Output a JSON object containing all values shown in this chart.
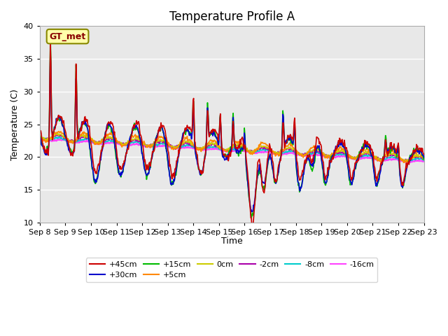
{
  "title": "Temperature Profile A",
  "xlabel": "Time",
  "ylabel": "Temperature (C)",
  "ylim": [
    10,
    40
  ],
  "background_color": "#e8e8e8",
  "fig_background": "#ffffff",
  "grid_color": "#ffffff",
  "annotation_label": "GT_met",
  "annotation_box_facecolor": "#ffffaa",
  "annotation_box_edgecolor": "#888800",
  "annotation_text_color": "#880000",
  "xtick_labels": [
    "Sep 8",
    "Sep 9",
    "Sep 10",
    "Sep 11",
    "Sep 12",
    "Sep 13",
    "Sep 14",
    "Sep 15",
    "Sep 16",
    "Sep 17",
    "Sep 18",
    "Sep 19",
    "Sep 20",
    "Sep 21",
    "Sep 22",
    "Sep 23"
  ],
  "series": {
    "+45cm": {
      "color": "#cc0000",
      "linestyle": "-",
      "linewidth": 1.2
    },
    "+30cm": {
      "color": "#0000cc",
      "linestyle": "-",
      "linewidth": 1.2
    },
    "+15cm": {
      "color": "#00bb00",
      "linestyle": "-",
      "linewidth": 1.2
    },
    "+5cm": {
      "color": "#ff8800",
      "linestyle": "-",
      "linewidth": 1.2
    },
    "0cm": {
      "color": "#cccc00",
      "linestyle": "-",
      "linewidth": 1.2
    },
    "-2cm": {
      "color": "#aa00aa",
      "linestyle": "-",
      "linewidth": 1.2
    },
    "-8cm": {
      "color": "#00cccc",
      "linestyle": "-",
      "linewidth": 1.2
    },
    "-16cm": {
      "color": "#ff44ff",
      "linestyle": "-",
      "linewidth": 1.8
    }
  },
  "legend_order": [
    "+45cm",
    "+30cm",
    "+15cm",
    "+5cm",
    "0cm",
    "-2cm",
    "-8cm",
    "-16cm"
  ],
  "title_fontsize": 12,
  "axis_label_fontsize": 9,
  "tick_fontsize": 8
}
